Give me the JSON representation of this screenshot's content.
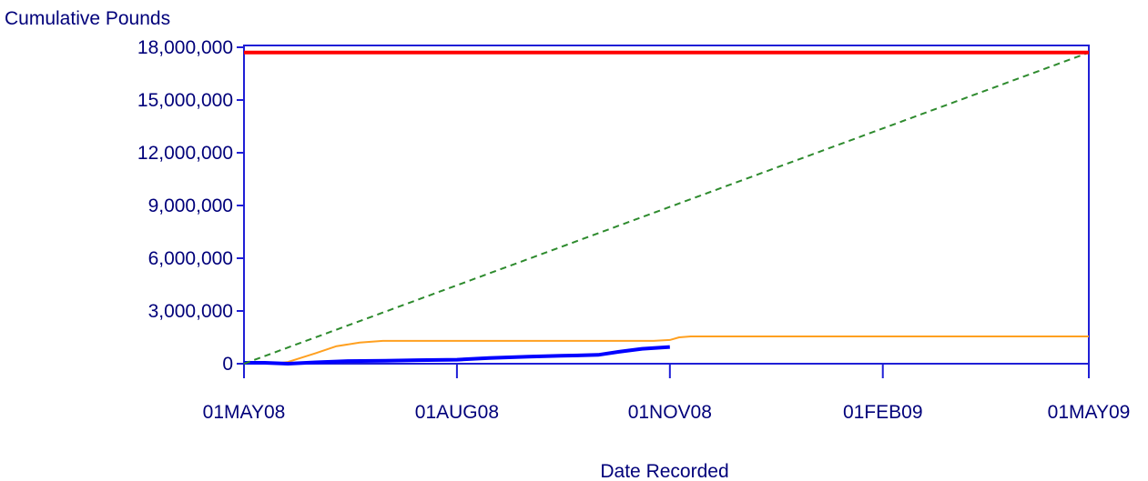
{
  "chart_data": {
    "type": "line",
    "title": "",
    "ylabel": "Cumulative Pounds",
    "xlabel": "Date Recorded",
    "x_ticks": [
      "01MAY08",
      "01AUG08",
      "01NOV08",
      "01FEB09",
      "01MAY09"
    ],
    "y_ticks": [
      "0",
      "3,000,000",
      "6,000,000",
      "9,000,000",
      "12,000,000",
      "15,000,000",
      "18,000,000"
    ],
    "xlim": [
      "2008-05-01",
      "2009-05-01"
    ],
    "ylim": [
      0,
      18000000
    ],
    "grid": false,
    "legend": "none",
    "colors": {
      "axis": "#1f1fd6",
      "text": "#00007a"
    },
    "series": [
      {
        "color": "#ff0000",
        "style": "solid-thick",
        "x": [
          "2008-05-01",
          "2009-05-01"
        ],
        "y": [
          17700000,
          17700000
        ]
      },
      {
        "color": "#2e8b2e",
        "style": "dashed",
        "x": [
          "2008-05-01",
          "2009-05-01"
        ],
        "y": [
          0,
          17700000
        ]
      },
      {
        "color": "#ffa020",
        "style": "solid",
        "x": [
          "2008-05-01",
          "2008-05-14",
          "2008-05-20",
          "2008-06-01",
          "2008-06-10",
          "2008-06-20",
          "2008-06-30",
          "2008-07-10",
          "2008-08-01",
          "2008-09-01",
          "2008-10-01",
          "2008-10-25",
          "2008-11-01",
          "2008-11-05",
          "2008-11-10",
          "2009-01-01",
          "2009-03-01",
          "2009-05-01"
        ],
        "y": [
          0,
          0,
          100000,
          600000,
          1000000,
          1200000,
          1300000,
          1300000,
          1300000,
          1300000,
          1300000,
          1300000,
          1350000,
          1500000,
          1550000,
          1550000,
          1550000,
          1550000
        ]
      },
      {
        "color": "#0000ff",
        "style": "solid-thick",
        "x": [
          "2008-05-01",
          "2008-05-10",
          "2008-05-20",
          "2008-06-01",
          "2008-06-15",
          "2008-07-01",
          "2008-07-15",
          "2008-08-01",
          "2008-08-15",
          "2008-09-01",
          "2008-09-15",
          "2008-10-01",
          "2008-10-10",
          "2008-10-20",
          "2008-11-01"
        ],
        "y": [
          50000,
          50000,
          0,
          80000,
          150000,
          170000,
          200000,
          230000,
          320000,
          400000,
          450000,
          500000,
          680000,
          850000,
          950000
        ]
      }
    ]
  }
}
